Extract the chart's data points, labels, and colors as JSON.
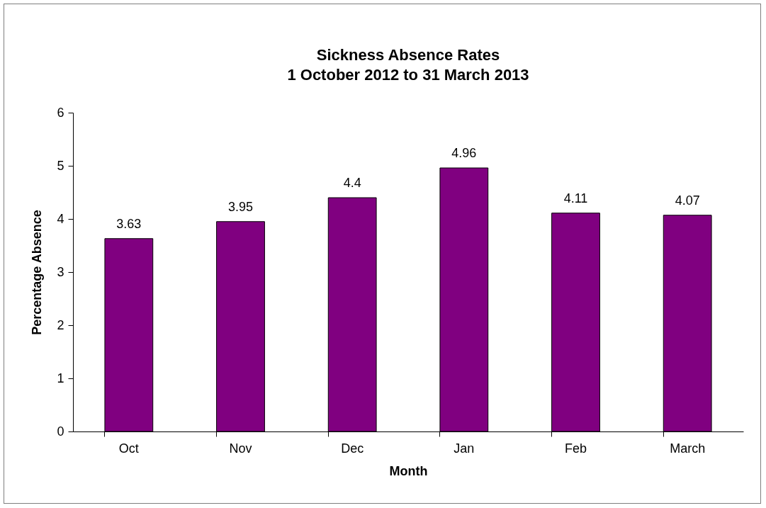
{
  "chart_data": {
    "type": "bar",
    "title": "Sickness Absence Rates",
    "subtitle": "1 October 2012 to 31 March 2013",
    "xlabel": "Month",
    "ylabel": "Percentage Absence",
    "categories": [
      "Oct",
      "Nov",
      "Dec",
      "Jan",
      "Feb",
      "March"
    ],
    "values": [
      3.63,
      3.95,
      4.4,
      4.96,
      4.11,
      4.07
    ],
    "color": "#800080",
    "ylim": [
      0,
      6
    ],
    "yticks": [
      0,
      1,
      2,
      3,
      4,
      5,
      6
    ],
    "grid": false,
    "data_labels": true
  }
}
